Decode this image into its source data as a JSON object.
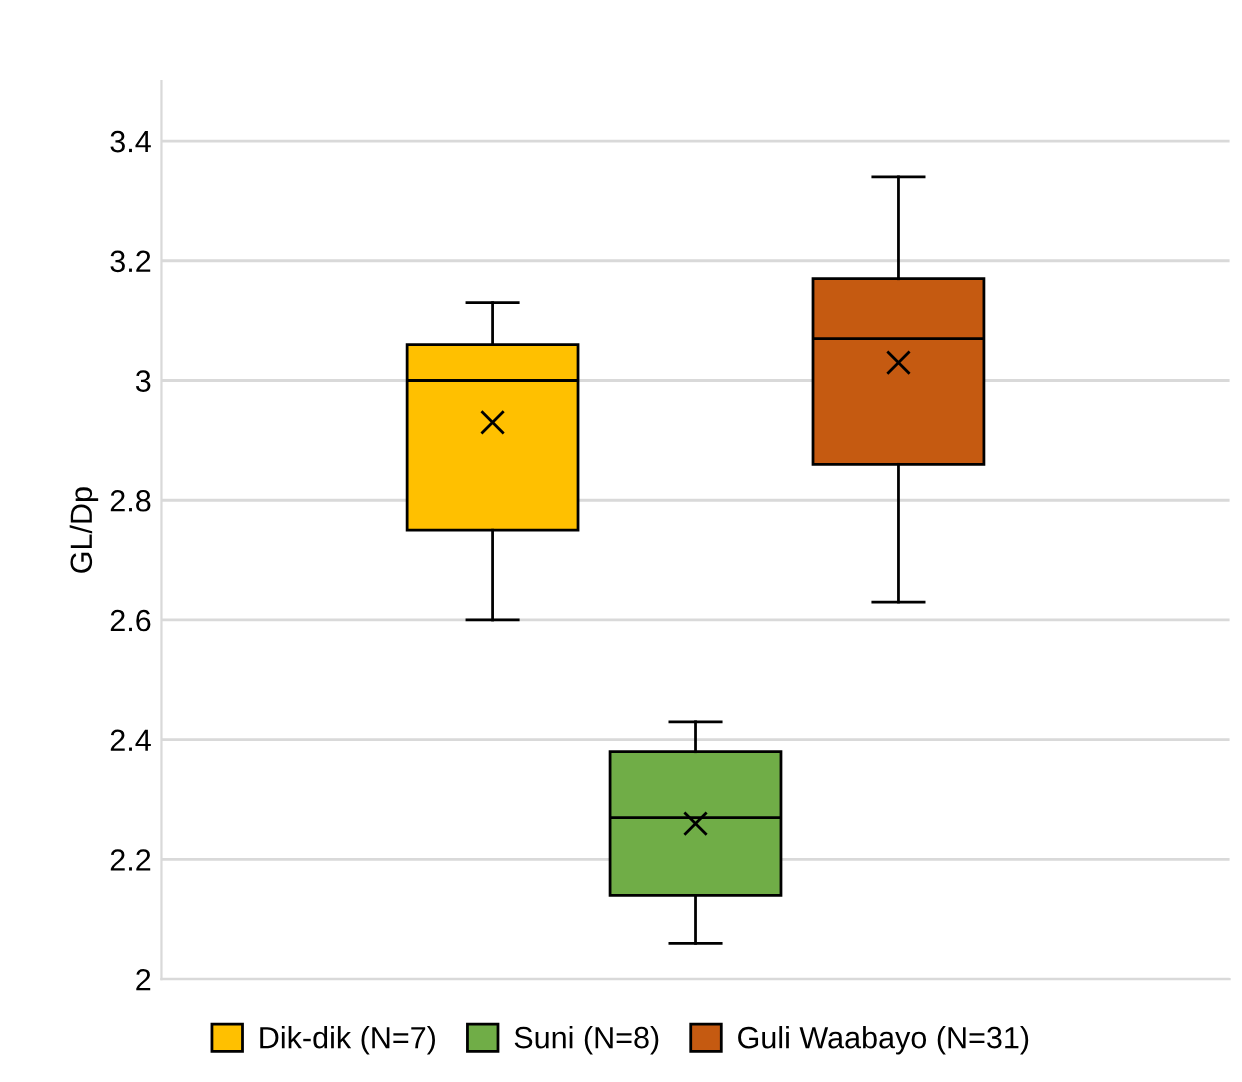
{
  "chart_data": {
    "type": "box",
    "ylabel": "GL/Dp",
    "categories": [
      null
    ],
    "series": [
      {
        "name": "Dik-dik (N=7)",
        "color": "#ffc000",
        "boxes": [
          {
            "low": 2.6,
            "q1": 2.75,
            "median": 3.0,
            "q3": 3.06,
            "high": 3.13,
            "mean": 2.93
          }
        ]
      },
      {
        "name": "Suni (N=8)",
        "color": "#70ad47",
        "boxes": [
          {
            "low": 2.06,
            "q1": 2.14,
            "median": 2.27,
            "q3": 2.38,
            "high": 2.43,
            "mean": 2.26
          }
        ]
      },
      {
        "name": "Guli Waabayo (N=31)",
        "color": "#c55a11",
        "boxes": [
          {
            "low": 2.63,
            "q1": 2.86,
            "median": 3.07,
            "q3": 3.17,
            "high": 3.34,
            "mean": 3.03
          }
        ]
      }
    ],
    "ylim": [
      2,
      3.5
    ],
    "yticks": [
      2,
      2.2,
      2.4,
      2.6,
      2.8,
      3,
      3.2,
      3.4
    ],
    "grid": "y",
    "legend": "bottom",
    "tick_labels": "y"
  }
}
